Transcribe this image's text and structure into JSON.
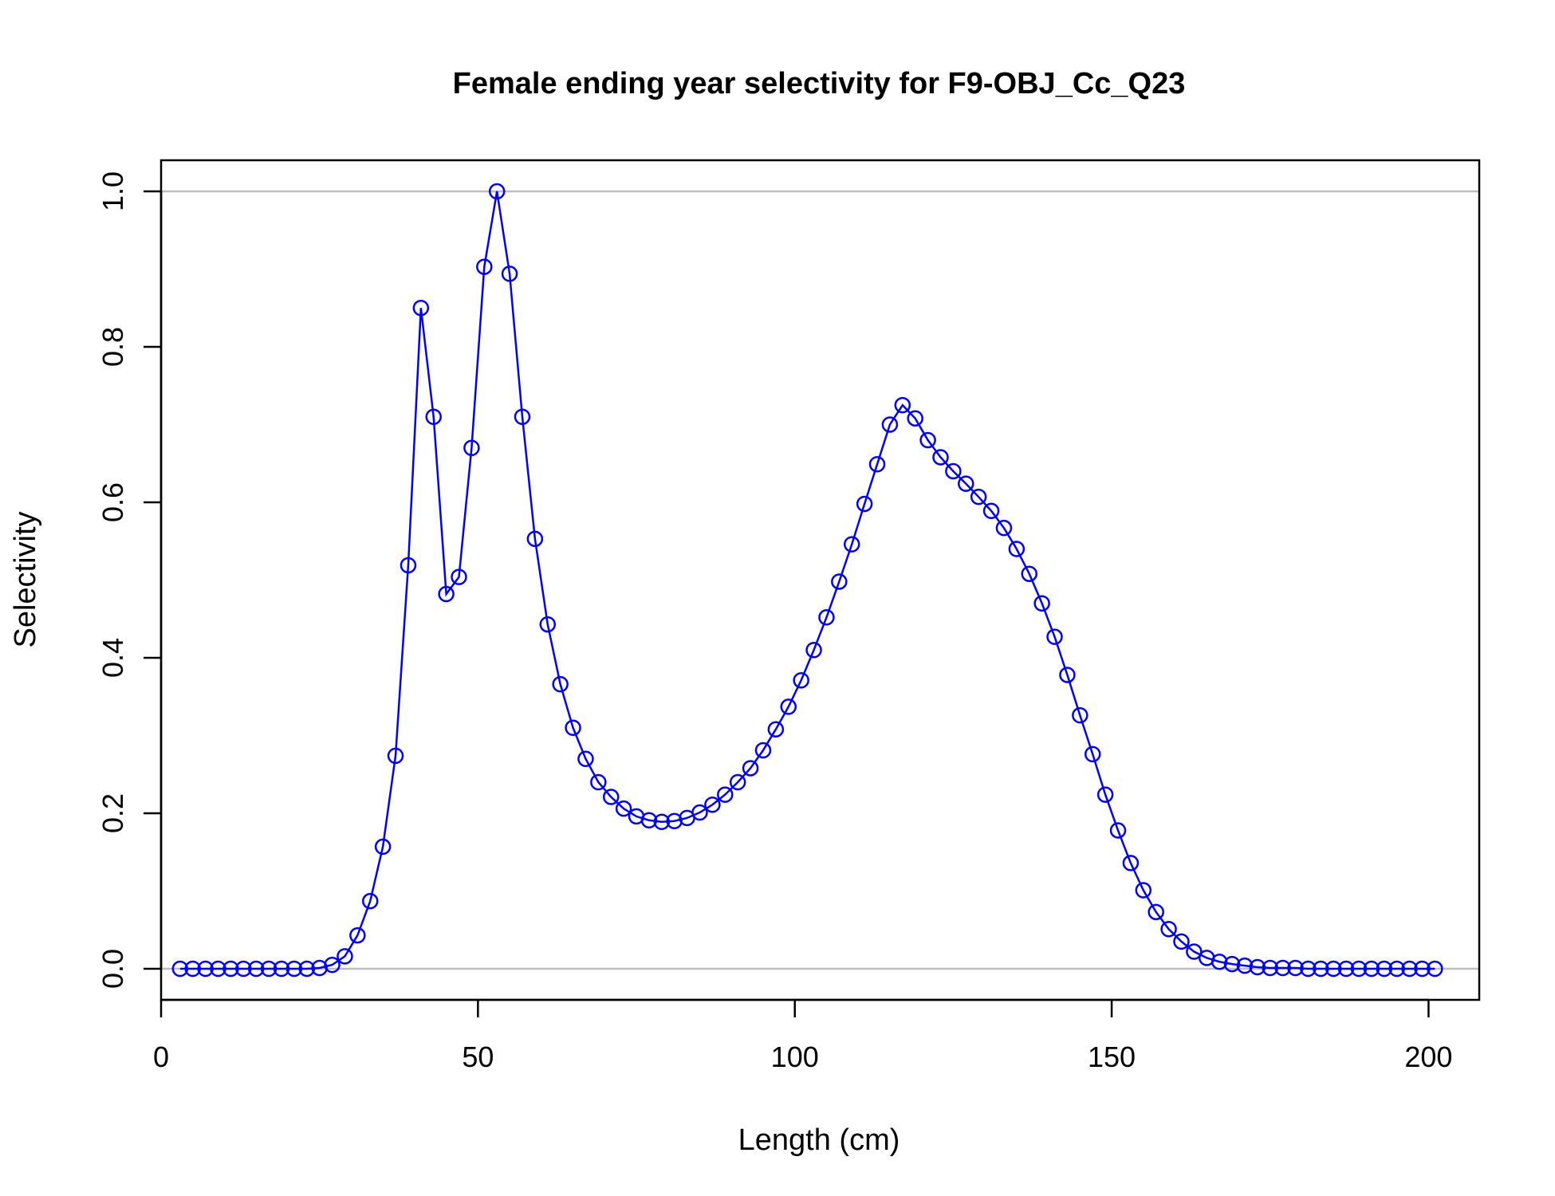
{
  "chart_data": {
    "type": "line",
    "title": "Female ending year selectivity for F9-OBJ_Cc_Q23",
    "xlabel": "Length (cm)",
    "ylabel": "Selectivity",
    "xlim": [
      0,
      208
    ],
    "ylim": [
      -0.04,
      1.04
    ],
    "x_ticks": [
      0,
      50,
      100,
      150,
      200
    ],
    "x_tick_labels": [
      "0",
      "50",
      "100",
      "150",
      "200"
    ],
    "y_ticks": [
      0.0,
      0.2,
      0.4,
      0.6,
      0.8,
      1.0
    ],
    "y_tick_labels": [
      "0.0",
      "0.2",
      "0.4",
      "0.6",
      "0.8",
      "1.0"
    ],
    "reference_lines": [
      0,
      1
    ],
    "grid": false,
    "legend": "none",
    "colors": {
      "series": "#0000ff",
      "reference": "#bebebe",
      "axis": "#000000"
    },
    "series": [
      {
        "x": [
          3,
          5,
          7,
          9,
          11,
          13,
          15,
          17,
          19,
          21,
          23,
          25,
          27,
          29,
          31,
          33,
          35,
          37,
          39,
          41,
          43,
          45,
          47,
          49,
          51,
          53,
          55,
          57,
          59,
          61,
          63,
          65,
          67,
          69,
          71,
          73,
          75,
          77,
          79,
          81,
          83,
          85,
          87,
          89,
          91,
          93,
          95,
          97,
          99,
          101,
          103,
          105,
          107,
          109,
          111,
          113,
          115,
          117,
          119,
          121,
          123,
          125,
          127,
          129,
          131,
          133,
          135,
          137,
          139,
          141,
          143,
          145,
          147,
          149,
          151,
          153,
          155,
          157,
          159,
          161,
          163,
          165,
          167,
          169,
          171,
          173,
          175,
          177,
          179,
          181,
          183,
          185,
          187,
          189,
          191,
          193,
          195,
          197,
          199,
          201
        ],
        "values": [
          0.0,
          0.0,
          0.0,
          0.0,
          0.0,
          0.0,
          0.0,
          0.0,
          0.0,
          0.0,
          0.0,
          0.001,
          0.005,
          0.016,
          0.043,
          0.087,
          0.157,
          0.274,
          0.519,
          0.85,
          0.71,
          0.482,
          0.504,
          0.67,
          0.903,
          1.0,
          0.894,
          0.71,
          0.553,
          0.443,
          0.366,
          0.31,
          0.27,
          0.24,
          0.221,
          0.206,
          0.196,
          0.191,
          0.189,
          0.19,
          0.194,
          0.201,
          0.211,
          0.224,
          0.24,
          0.258,
          0.281,
          0.308,
          0.337,
          0.371,
          0.41,
          0.452,
          0.498,
          0.546,
          0.598,
          0.649,
          0.7,
          0.725,
          0.708,
          0.68,
          0.658,
          0.64,
          0.624,
          0.607,
          0.589,
          0.567,
          0.54,
          0.508,
          0.47,
          0.427,
          0.378,
          0.326,
          0.276,
          0.224,
          0.178,
          0.136,
          0.101,
          0.073,
          0.051,
          0.035,
          0.022,
          0.014,
          0.009,
          0.006,
          0.004,
          0.002,
          0.001,
          0.001,
          0.001,
          0.0,
          0.0,
          0.0,
          0.0,
          0.0,
          0.0,
          0.0,
          0.0,
          0.0,
          0.0,
          0.0
        ]
      }
    ]
  }
}
